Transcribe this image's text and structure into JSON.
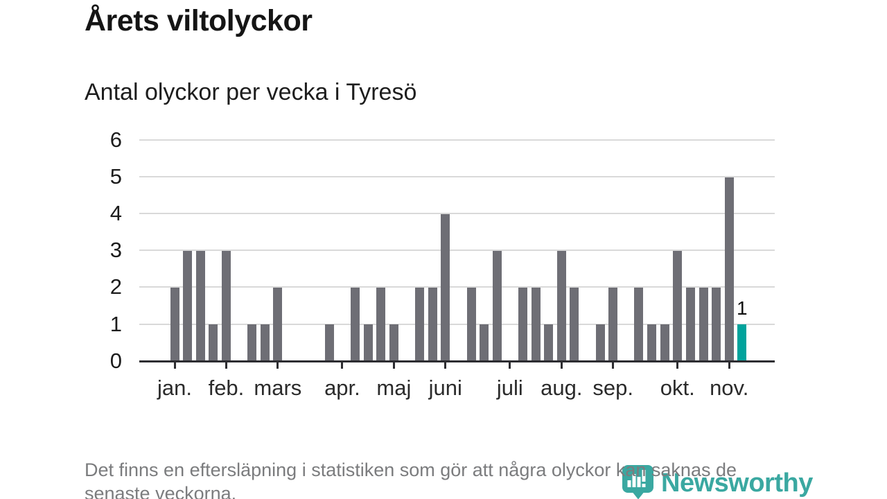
{
  "header": {
    "title": "Årets viltolyckor",
    "subtitle": "Antal olyckor per vecka i Tyresö"
  },
  "footnote": {
    "line1": "Det finns en eftersläpning i statistiken som gör att några olyckor kan saknas de",
    "line2": "senaste veckorna."
  },
  "logo": {
    "wordmark": "Newsworthy",
    "icon": "newsworthy-pin-barchart-icon"
  },
  "colors": {
    "bar": "#6e6e75",
    "highlight": "#00a39c",
    "logo_teal": "#3aa8a1",
    "grid": "#d9d9d9",
    "axis": "#2d2d31",
    "axis_text": "#1c1c1c",
    "muted_text": "#7b7c7e"
  },
  "chart_data": {
    "type": "bar",
    "title": "Årets viltolyckor",
    "subtitle": "Antal olyckor per vecka i Tyresö",
    "x_unit": "week",
    "values": [
      2,
      3,
      3,
      1,
      3,
      0,
      1,
      1,
      2,
      0,
      0,
      0,
      1,
      0,
      2,
      1,
      2,
      1,
      0,
      2,
      2,
      4,
      0,
      2,
      1,
      3,
      0,
      2,
      2,
      1,
      3,
      2,
      0,
      1,
      2,
      0,
      2,
      1,
      1,
      3,
      2,
      2,
      2,
      5,
      1
    ],
    "highlight_index": 44,
    "highlight_value_label": "1",
    "ylim": [
      0,
      6
    ],
    "yticks": [
      0,
      1,
      2,
      3,
      4,
      5,
      6
    ],
    "month_ticks": [
      {
        "label": "jan.",
        "week": 1
      },
      {
        "label": "feb.",
        "week": 5
      },
      {
        "label": "mars",
        "week": 9
      },
      {
        "label": "apr.",
        "week": 14
      },
      {
        "label": "maj",
        "week": 18
      },
      {
        "label": "juni",
        "week": 22
      },
      {
        "label": "juli",
        "week": 27
      },
      {
        "label": "aug.",
        "week": 31
      },
      {
        "label": "sep.",
        "week": 35
      },
      {
        "label": "okt.",
        "week": 40
      },
      {
        "label": "nov.",
        "week": 44
      }
    ],
    "grid": true,
    "legend": false
  }
}
